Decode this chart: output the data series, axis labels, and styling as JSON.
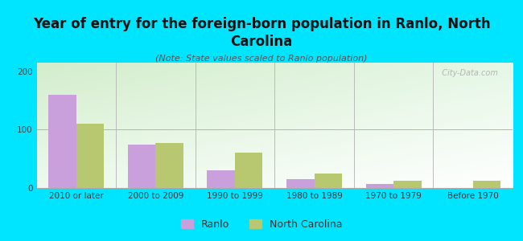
{
  "title": "Year of entry for the foreign-born population in Ranlo, North\nCarolina",
  "subtitle": "(Note: State values scaled to Ranlo population)",
  "categories": [
    "2010 or later",
    "2000 to 2009",
    "1990 to 1999",
    "1980 to 1989",
    "1970 to 1979",
    "Before 1970"
  ],
  "ranlo_values": [
    160,
    75,
    30,
    15,
    7,
    0
  ],
  "nc_values": [
    110,
    77,
    60,
    25,
    12,
    13
  ],
  "ranlo_color": "#c9a0dc",
  "nc_color": "#b8c870",
  "background_outer": "#00e5ff",
  "ylim": [
    0,
    215
  ],
  "yticks": [
    0,
    100,
    200
  ],
  "bar_width": 0.35,
  "title_fontsize": 12,
  "subtitle_fontsize": 8,
  "tick_fontsize": 7.5,
  "legend_fontsize": 9,
  "watermark": "  City-Data.com"
}
